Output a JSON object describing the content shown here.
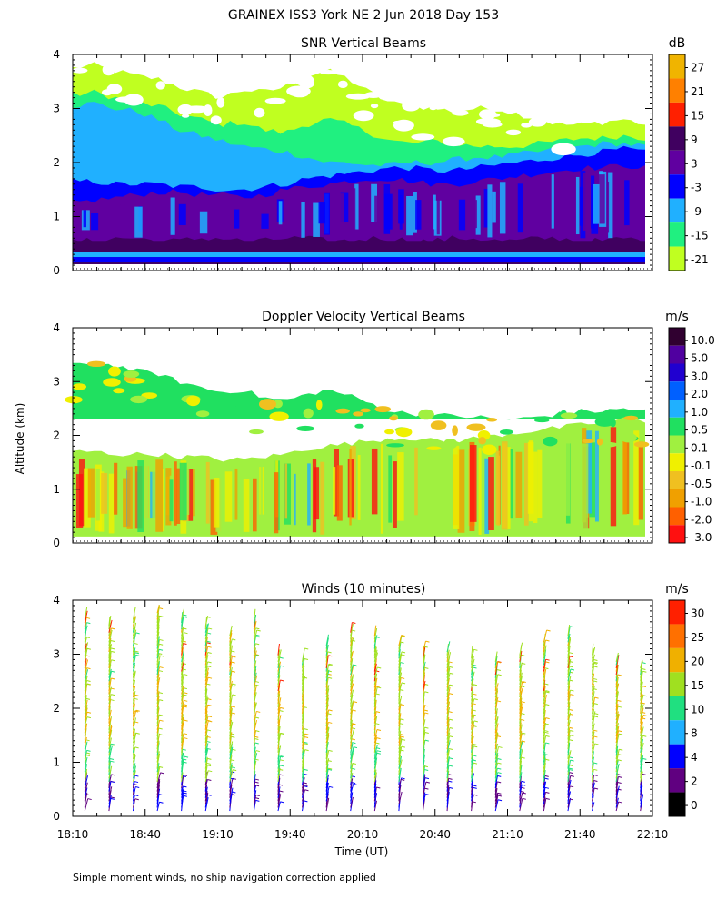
{
  "figure": {
    "title": "GRAINEX ISS3 York NE   2 Jun 2018 Day 153",
    "ylabel": "Altitude (km)",
    "xlabel": "Time (UT)",
    "footnote": "Simple moment winds, no ship navigation correction applied",
    "x_ticks": [
      "18:10",
      "18:40",
      "19:10",
      "19:40",
      "20:10",
      "20:40",
      "21:10",
      "21:40",
      "22:10"
    ],
    "y_ticks": [
      "0",
      "1",
      "2",
      "3",
      "4"
    ]
  },
  "chart_data": [
    {
      "type": "heatmap",
      "title": "SNR Vertical Beams",
      "unit": "dB",
      "xlim": [
        "18:10",
        "22:10"
      ],
      "ylim": [
        0,
        4
      ],
      "colorbar_labels": [
        "27",
        "21",
        "15",
        "9",
        "3",
        "-3",
        "-9",
        "-15",
        "-21"
      ],
      "colors": [
        "#f0b400",
        "#ff8000",
        "#ff2000",
        "#400060",
        "#6000a0",
        "#0000ff",
        "#20b0ff",
        "#20f080",
        "#c0ff20"
      ],
      "layers": [
        {
          "level": "-21",
          "top": [
            3.75,
            3.8,
            3.7,
            3.6,
            3.55,
            3.4,
            3.3,
            3.2,
            3.35,
            3.3,
            3.4,
            3.6,
            3.7,
            3.55,
            3.3,
            3.1,
            3.05,
            3.0,
            2.95,
            3.0,
            3.0,
            2.9,
            2.8,
            2.7,
            2.7,
            2.75,
            2.8,
            2.7
          ]
        },
        {
          "level": "-15",
          "top": [
            3.25,
            3.3,
            3.2,
            3.1,
            3.05,
            2.9,
            2.8,
            2.7,
            2.75,
            2.6,
            2.55,
            2.7,
            2.8,
            2.7,
            2.55,
            2.4,
            2.35,
            2.4,
            2.35,
            2.3,
            2.3,
            2.3,
            2.35,
            2.4,
            2.45,
            2.45,
            2.5,
            2.45
          ]
        },
        {
          "level": "-9",
          "top": [
            3.05,
            3.1,
            3.0,
            2.95,
            2.8,
            2.6,
            2.5,
            2.4,
            2.3,
            2.25,
            2.2,
            2.1,
            2.0,
            2.0,
            1.95,
            1.95,
            2.0,
            2.0,
            2.05,
            2.1,
            2.1,
            2.15,
            2.2,
            2.25,
            2.3,
            2.35,
            2.35,
            2.3
          ]
        },
        {
          "level": "-3",
          "top": [
            1.65,
            1.65,
            1.6,
            1.6,
            1.6,
            1.55,
            1.55,
            1.5,
            1.5,
            1.55,
            1.6,
            1.7,
            1.75,
            1.8,
            1.85,
            1.9,
            1.9,
            1.85,
            1.85,
            1.9,
            1.95,
            2.0,
            2.05,
            2.1,
            2.15,
            2.2,
            2.25,
            2.2
          ]
        },
        {
          "level": "3",
          "top": [
            1.25,
            1.3,
            1.35,
            1.4,
            1.45,
            1.45,
            1.4,
            1.4,
            1.35,
            1.4,
            1.5,
            1.55,
            1.6,
            1.65,
            1.7,
            1.7,
            1.65,
            1.6,
            1.6,
            1.65,
            1.7,
            1.75,
            1.8,
            1.85,
            1.9,
            1.9,
            1.95,
            1.9
          ]
        },
        {
          "level": "9",
          "top": [
            0.55,
            0.55,
            0.6,
            0.6,
            0.55,
            0.55,
            0.6,
            0.6,
            0.55,
            0.55,
            0.6,
            0.6,
            0.55,
            0.55,
            0.6,
            0.6,
            0.55,
            0.55,
            0.6,
            0.6,
            0.55,
            0.55,
            0.6,
            0.6,
            0.55,
            0.55,
            0.6,
            0.55
          ]
        }
      ],
      "data_bottom_km": 0.12
    },
    {
      "type": "heatmap",
      "title": "Doppler Velocity Vertical Beams",
      "unit": "m/s",
      "xlim": [
        "18:10",
        "22:10"
      ],
      "ylim": [
        0,
        4
      ],
      "colorbar_labels": [
        "10.0",
        "5.0",
        "3.0",
        "2.0",
        "1.0",
        "0.5",
        "0.1",
        "-0.1",
        "-0.5",
        "-1.0",
        "-2.0",
        "-3.0"
      ],
      "colors": [
        "#300030",
        "#5000a0",
        "#2000d0",
        "#0060ff",
        "#20b0ff",
        "#20e060",
        "#a0f040",
        "#f0f000",
        "#f0c020",
        "#f0a000",
        "#ff6000",
        "#ff1010"
      ],
      "regions": [
        {
          "level": "0.5",
          "top": [
            3.3,
            3.35,
            3.3,
            3.2,
            3.15,
            3.0,
            2.9,
            2.8,
            2.85,
            2.7,
            2.65,
            2.75,
            2.85,
            2.75,
            2.6,
            2.45,
            2.4,
            2.4,
            2.35,
            2.35,
            2.3,
            2.3,
            2.35,
            2.4,
            2.45,
            2.45,
            2.5,
            2.45
          ],
          "bottom": 2.3
        },
        {
          "level": "0.1",
          "top": [
            1.7,
            1.7,
            1.65,
            1.65,
            1.65,
            1.6,
            1.6,
            1.55,
            1.55,
            1.6,
            1.65,
            1.75,
            1.8,
            1.85,
            1.9,
            1.95,
            1.95,
            1.9,
            1.9,
            1.95,
            2.0,
            2.05,
            2.1,
            2.15,
            2.2,
            2.25,
            2.3,
            2.25
          ],
          "bottom": 0.12
        }
      ],
      "data_bottom_km": 0.12
    },
    {
      "type": "scatter",
      "title": "Winds (10 minutes)",
      "unit": "m/s",
      "xlim": [
        "18:10",
        "22:10"
      ],
      "ylim": [
        0,
        4
      ],
      "colorbar_labels": [
        "30",
        "25",
        "20",
        "15",
        "10",
        "8",
        "4",
        "2",
        "0"
      ],
      "colors": [
        "#ff2000",
        "#ff7000",
        "#f0b000",
        "#a0e020",
        "#20e080",
        "#20b0ff",
        "#0000ff",
        "#600080",
        "#000000"
      ],
      "profiles_x": [
        "18:15",
        "18:25",
        "18:35",
        "18:45",
        "18:55",
        "19:05",
        "19:15",
        "19:25",
        "19:35",
        "19:45",
        "19:55",
        "20:05",
        "20:15",
        "20:25",
        "20:35",
        "20:45",
        "20:55",
        "21:05",
        "21:15",
        "21:25",
        "21:35",
        "21:45",
        "21:55",
        "22:05"
      ],
      "profiles_top_km": [
        3.65,
        3.55,
        3.65,
        3.8,
        3.7,
        3.55,
        3.4,
        3.6,
        3.0,
        2.9,
        3.2,
        3.45,
        3.4,
        3.2,
        3.1,
        3.05,
        2.95,
        2.9,
        3.0,
        3.25,
        3.35,
        3.0,
        2.9,
        2.8
      ],
      "profiles_bottom_km": 0.1
    }
  ]
}
